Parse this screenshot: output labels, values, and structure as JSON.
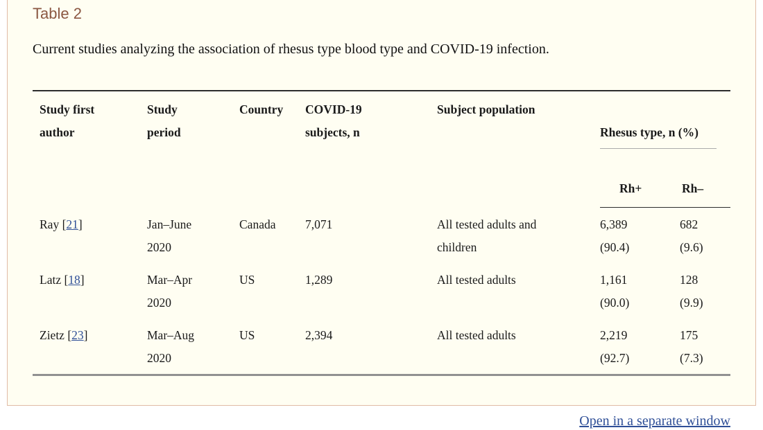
{
  "title": "Table 2",
  "caption": "Current studies analyzing the association of rhesus type blood type and COVID-19 infection.",
  "table": {
    "col_headers": {
      "author": "Study first\nauthor",
      "period": "Study\nperiod",
      "country": "Country",
      "subjects": "COVID-19\nsubjects, n",
      "population": "Subject population",
      "rhesus_group": "Rhesus type, n (%)",
      "rh_pos": "Rh+",
      "rh_neg": "Rh–"
    },
    "ref_open": "[",
    "ref_close": "]",
    "rows": [
      {
        "author": "Ray ",
        "ref": "21",
        "period": "Jan–June\n2020",
        "country": "Canada",
        "subjects": "7,071",
        "population": "All tested adults and\nchildren",
        "rh_pos": "6,389\n(90.4)",
        "rh_neg": "682\n(9.6)"
      },
      {
        "author": "Latz ",
        "ref": "18",
        "period": "Mar–Apr\n2020",
        "country": "US",
        "subjects": "1,289",
        "population": "All tested adults",
        "rh_pos": "1,161\n(90.0)",
        "rh_neg": "128\n(9.9)"
      },
      {
        "author": "Zietz ",
        "ref": "23",
        "period": "Mar–Aug\n2020",
        "country": "US",
        "subjects": "2,394",
        "population": "All tested adults",
        "rh_pos": "2,219\n(92.7)",
        "rh_neg": "175\n(7.3)"
      }
    ]
  },
  "footer": {
    "open_link": "Open in a separate window"
  },
  "colors": {
    "panel_background": "#FFFEF2",
    "panel_border": "#E0BBA6",
    "heading": "#8B5742",
    "link": "#2F4F97",
    "rule_dark": "#2B2B2B",
    "rule_gray": "#919191",
    "rule_light": "#ABABAB"
  }
}
